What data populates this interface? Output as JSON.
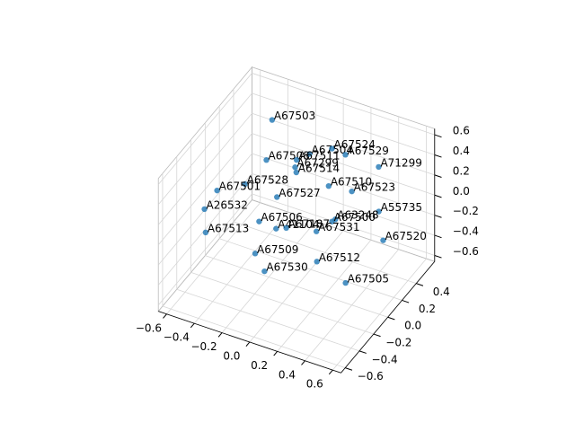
{
  "chart_data": {
    "type": "scatter3d",
    "color": "#1f77b4",
    "labels": [
      "A67503",
      "A67508",
      "A67504",
      "A67524",
      "A67529",
      "A67511",
      "A67299",
      "A67514",
      "A71299",
      "A67528",
      "A67510",
      "A67523",
      "A67501",
      "A67527",
      "A26532",
      "A55735",
      "A67506",
      "A63248",
      "A67500",
      "A41104",
      "A67187",
      "A67531",
      "A67513",
      "A67520",
      "A67509",
      "A67512",
      "A67530",
      "A67505"
    ],
    "x": [
      -0.33,
      -0.32,
      -0.11,
      0.0,
      0.2,
      -0.05,
      -0.01,
      0.05,
      0.44,
      -0.27,
      0.13,
      0.4,
      -0.42,
      -0.09,
      -0.46,
      0.39,
      -0.27,
      0.23,
      0.36,
      -0.25,
      0.08,
      -0.01,
      -0.4,
      0.37,
      -0.35,
      0.25,
      -0.18,
      0.56
    ],
    "y": [
      0.3,
      0.2,
      0.4,
      0.5,
      0.3,
      0.1,
      0.0,
      -0.1,
      0.3,
      -0.2,
      0.2,
      0.0,
      -0.3,
      -0.1,
      -0.4,
      0.4,
      0.0,
      0.1,
      -0.2,
      0.2,
      -0.3,
      0.3,
      -0.5,
      0.5,
      0.1,
      -0.2,
      -0.1,
      -0.4
    ],
    "z": [
      0.59,
      0.28,
      0.27,
      0.29,
      0.49,
      0.49,
      0.52,
      0.58,
      0.48,
      0.4,
      0.23,
      0.47,
      0.35,
      0.27,
      0.23,
      -0.07,
      -0.14,
      0.03,
      0.32,
      -0.37,
      0.21,
      -0.37,
      0.11,
      -0.45,
      -0.58,
      -0.13,
      -0.51,
      -0.03
    ],
    "xlim": [
      -0.66,
      0.66
    ],
    "ylim": [
      -0.66,
      0.66
    ],
    "zlim": [
      -0.66,
      0.66
    ],
    "xticks": [
      {
        "value": -0.6,
        "label": "−0.6"
      },
      {
        "value": -0.4,
        "label": "−0.4"
      },
      {
        "value": -0.2,
        "label": "−0.2"
      },
      {
        "value": 0.0,
        "label": "0.0"
      },
      0.2,
      0.4,
      0.6
    ],
    "yticks": [
      {
        "value": -0.6,
        "label": "−0.6"
      },
      {
        "value": -0.4,
        "label": "−0.4"
      },
      {
        "value": -0.2,
        "label": "−0.2"
      },
      {
        "value": 0.0,
        "label": "0.0"
      },
      0.2,
      0.4
    ],
    "zticks": [
      {
        "value": -0.6,
        "label": "−0.6"
      },
      {
        "value": -0.4,
        "label": "−0.4"
      },
      {
        "value": -0.2,
        "label": "−0.2"
      },
      {
        "value": 0.0,
        "label": "0.0"
      },
      0.2,
      0.4,
      0.6
    ]
  }
}
